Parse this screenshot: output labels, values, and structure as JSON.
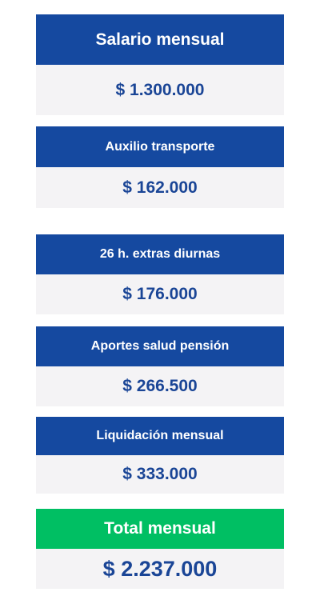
{
  "cards": [
    {
      "label": "Salario mensual",
      "value": "$ 1.300.000"
    },
    {
      "label": "Auxilio transporte",
      "value": "$ 162.000"
    },
    {
      "label": "26 h. extras diurnas",
      "value": "$ 176.000"
    },
    {
      "label": "Aportes salud pensión",
      "value": "$ 266.500"
    },
    {
      "label": "Liquidación mensual",
      "value": "$ 333.000"
    }
  ],
  "total": {
    "label": "Total mensual",
    "value": "$ 2.237.000"
  },
  "colors": {
    "header_blue": "#1549a0",
    "header_green": "#00bf63",
    "value_blue": "#1a4596",
    "body_gray": "#f4f3f5"
  }
}
